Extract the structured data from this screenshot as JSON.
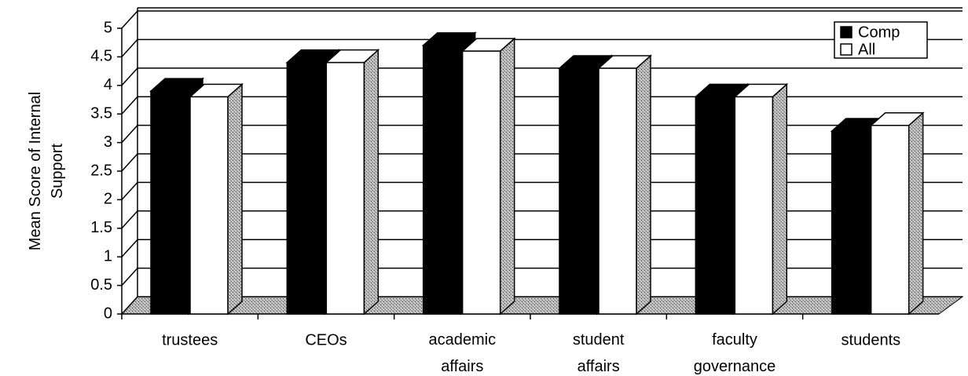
{
  "chart_data": {
    "type": "bar3d",
    "ylabel": [
      "Mean Score of Internal",
      "Support"
    ],
    "categories": [
      "trustees",
      "CEOs",
      "academic affairs",
      "student affairs",
      "faculty governance",
      "students"
    ],
    "series": [
      {
        "name": "Comp",
        "color": "#000000",
        "values": [
          3.9,
          4.4,
          4.7,
          4.3,
          3.8,
          3.2
        ]
      },
      {
        "name": "All",
        "color": "#ffffff",
        "values": [
          3.8,
          4.4,
          4.6,
          4.3,
          3.8,
          3.3
        ]
      }
    ],
    "ylim": [
      0,
      5
    ],
    "yticks": [
      0,
      0.5,
      1,
      1.5,
      2,
      2.5,
      3,
      3.5,
      4,
      4.5,
      5
    ],
    "grid": true,
    "legend": "upper right"
  }
}
